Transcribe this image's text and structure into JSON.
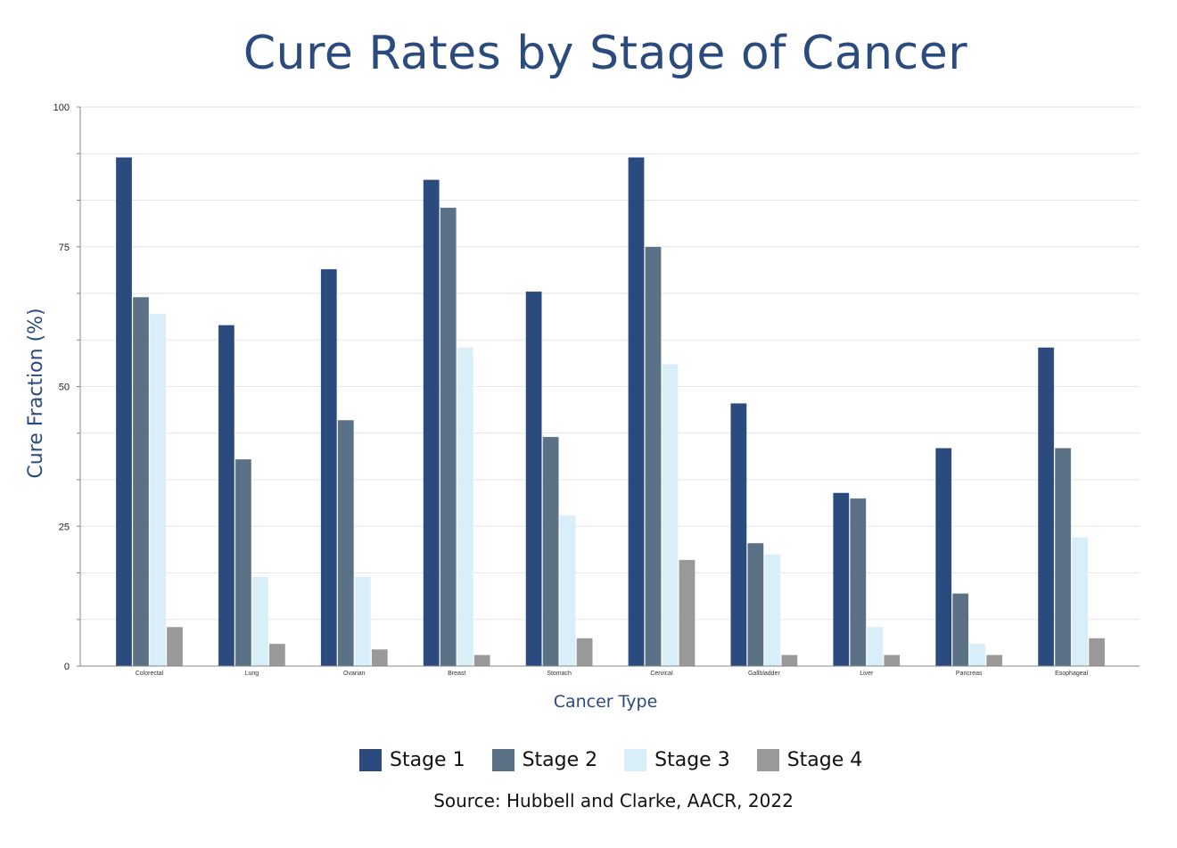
{
  "chart_data": {
    "type": "bar",
    "title": "Cure Rates by Stage of Cancer",
    "xlabel": "Cancer Type",
    "ylabel": "Cure Fraction (%)",
    "ylim": [
      0,
      100
    ],
    "yticks": [
      0,
      25,
      50,
      75,
      100
    ],
    "minor_gridlines_step": 8.333,
    "grid": true,
    "legend_placement": "bottom",
    "categories": [
      "Colorectal",
      "Lung",
      "Ovarian",
      "Breast",
      "Stomach",
      "Cervical",
      "Gallbladder",
      "Liver",
      "Pancreas",
      "Esophageal"
    ],
    "series": [
      {
        "name": "Stage 1",
        "color": "#2b4a7e",
        "values": [
          91,
          61,
          71,
          87,
          67,
          91,
          47,
          31,
          39,
          57
        ]
      },
      {
        "name": "Stage 2",
        "color": "#5b7185",
        "values": [
          66,
          37,
          44,
          82,
          41,
          75,
          22,
          30,
          13,
          39
        ]
      },
      {
        "name": "Stage 3",
        "color": "#d8eef9",
        "values": [
          63,
          16,
          16,
          57,
          27,
          54,
          20,
          7,
          4,
          23
        ]
      },
      {
        "name": "Stage 4",
        "color": "#999999",
        "values": [
          7,
          4,
          3,
          2,
          5,
          19,
          2,
          2,
          2,
          5
        ]
      }
    ],
    "source": "Source: Hubbell and Clarke, AACR, 2022"
  },
  "colors": {
    "title": "#2b4a7e",
    "axis_label": "#2b4a7e",
    "gridline": "#e6e6e6",
    "axis": "#888888"
  }
}
